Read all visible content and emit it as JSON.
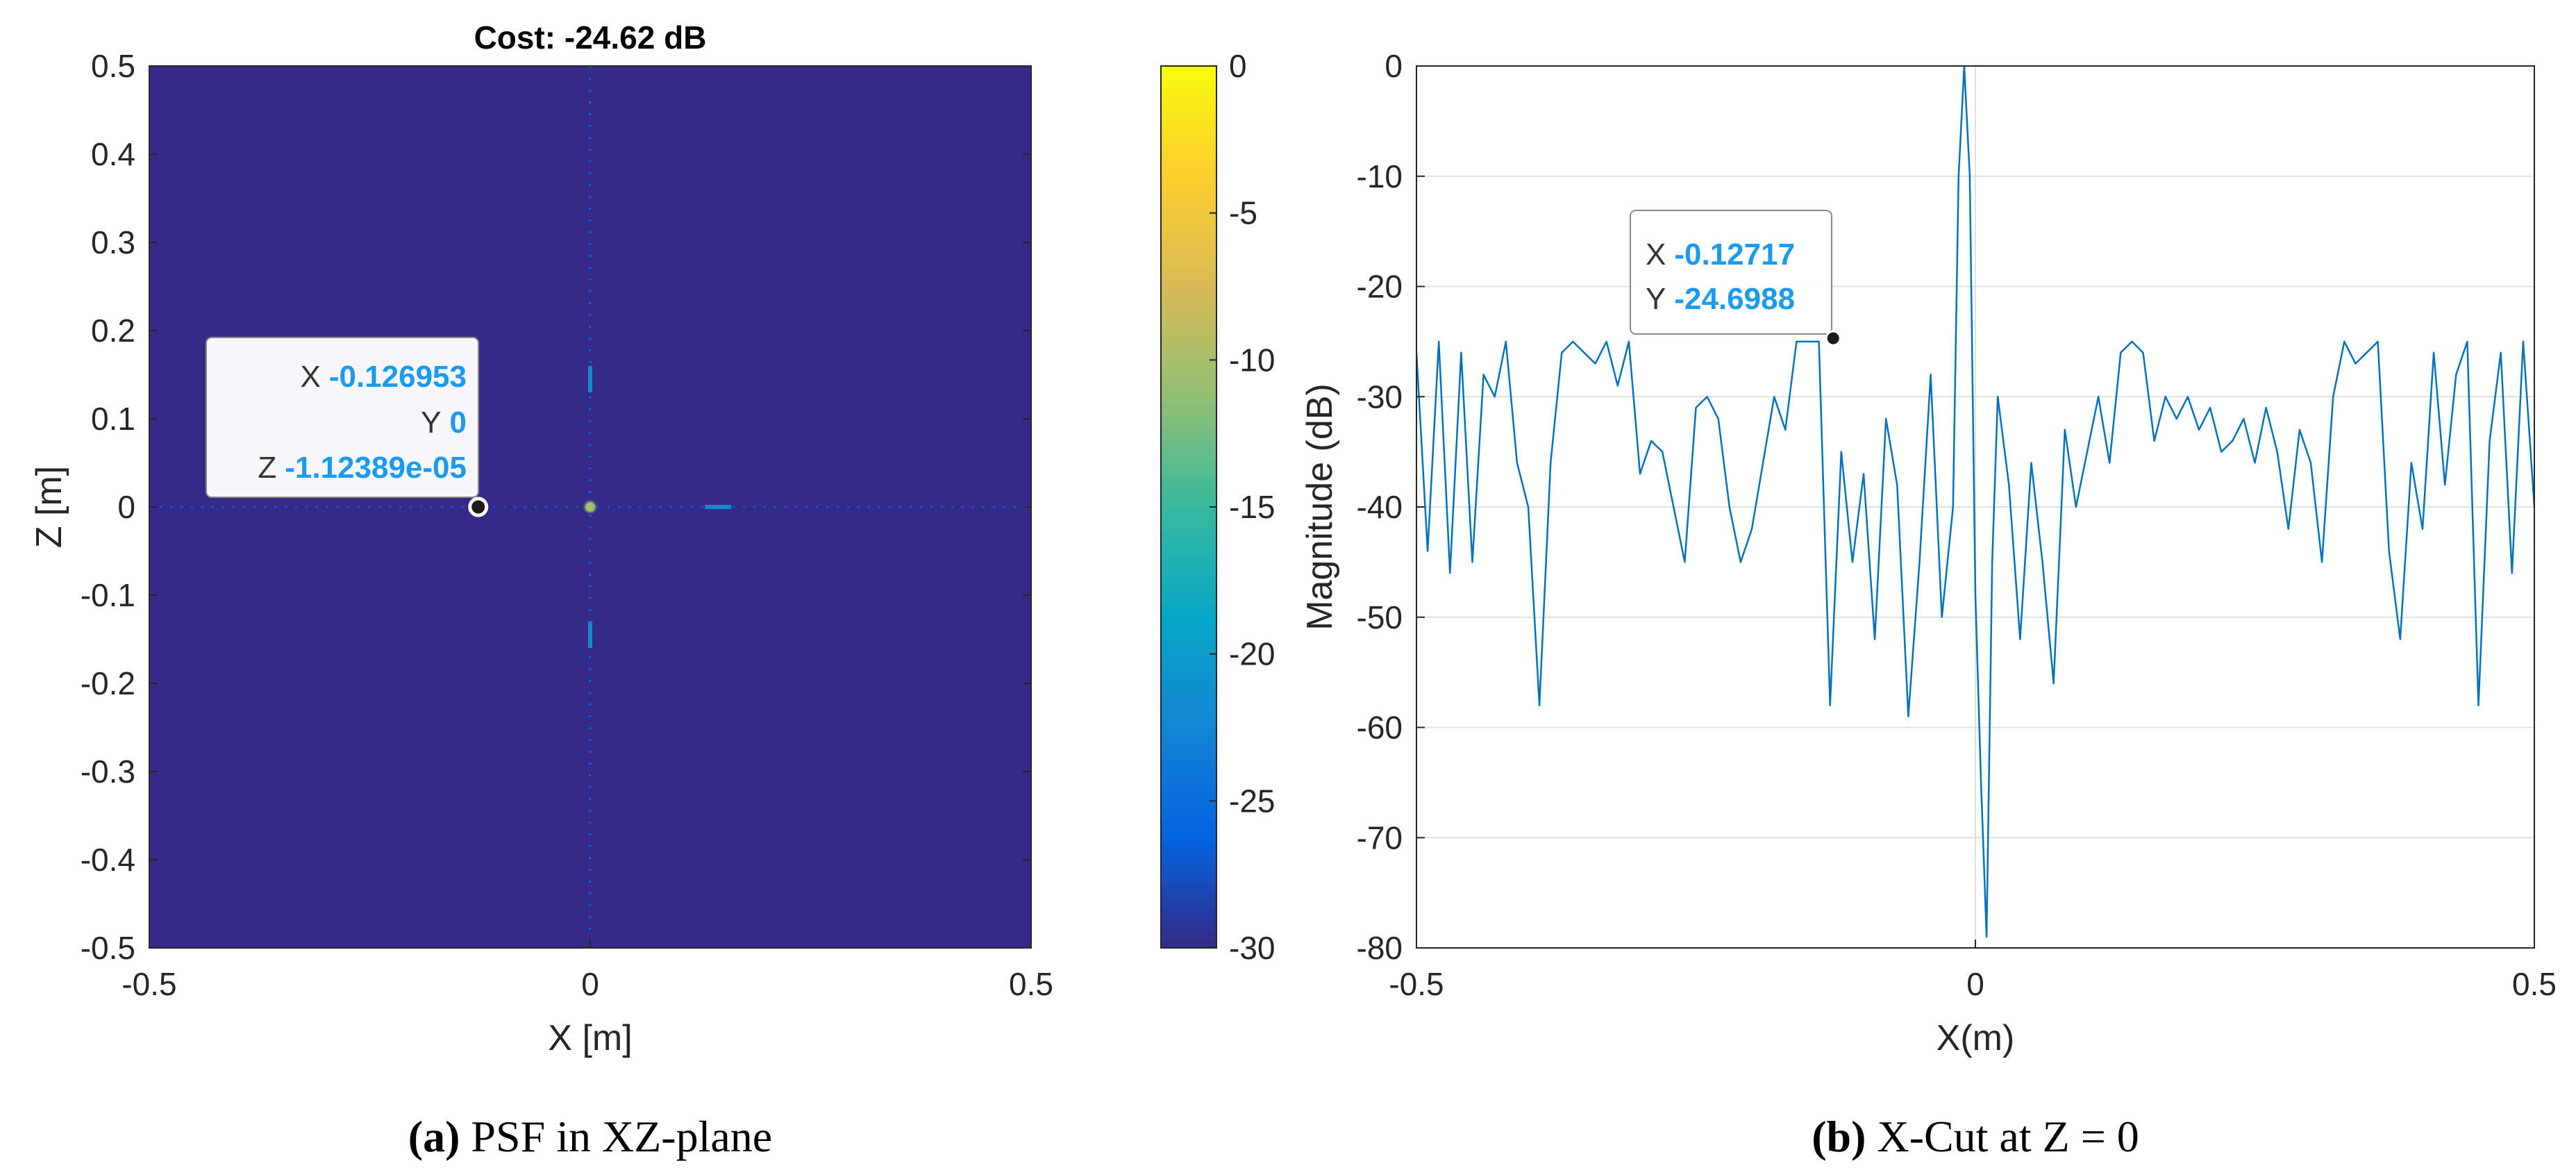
{
  "chart_data": [
    {
      "type": "heatmap",
      "title": "Cost: -24.62 dB",
      "xlabel": "X [m]",
      "ylabel": "Z [m]",
      "xlim": [
        -0.5,
        0.5
      ],
      "ylim": [
        -0.5,
        0.5
      ],
      "xticks": [
        "-0.5",
        "0",
        "0.5"
      ],
      "yticks": [
        "-0.5",
        "-0.4",
        "-0.3",
        "-0.2",
        "-0.1",
        "0",
        "0.1",
        "0.2",
        "0.3",
        "0.4",
        "0.5"
      ],
      "colorbar": {
        "range": [
          -30,
          0
        ],
        "ticks": [
          "0",
          "-5",
          "-10",
          "-15",
          "-20",
          "-25",
          "-30"
        ],
        "colormap": "parula"
      },
      "background_value_db": -30,
      "peak": {
        "x": 0,
        "z": 0,
        "value_db": -10
      },
      "features": [
        {
          "x": 0,
          "z_from": 0.5,
          "z_to": -0.5,
          "value_db": -26,
          "kind": "faint vertical line"
        },
        {
          "x_from": -0.5,
          "x_to": 0.5,
          "z": 0,
          "value_db": -27,
          "kind": "faint horizontal line"
        },
        {
          "x": 0,
          "z_from": 0.13,
          "z_to": 0.16,
          "value_db": -22
        },
        {
          "x": 0,
          "z_from": -0.16,
          "z_to": -0.13,
          "value_db": -22
        },
        {
          "x_from": 0.13,
          "x_to": 0.16,
          "z": 0,
          "value_db": -22
        }
      ],
      "datatip": {
        "x": "-0.126953",
        "y": "0",
        "z": "-1.12389e-05",
        "x_value": -0.126953,
        "z_value": 0
      },
      "datatip_labels": {
        "x": "X",
        "y": "Y",
        "z": "Z"
      },
      "caption_tag": "(a)",
      "caption_text": "PSF in XZ-plane"
    },
    {
      "type": "line",
      "title": "",
      "xlabel": "X(m)",
      "ylabel": "Magnitude (dB)",
      "xlim": [
        -0.5,
        0.5
      ],
      "ylim": [
        -80,
        0
      ],
      "xticks": [
        "-0.5",
        "0",
        "0.5"
      ],
      "yticks": [
        "0",
        "-10",
        "-20",
        "-30",
        "-40",
        "-50",
        "-60",
        "-70",
        "-80"
      ],
      "grid": true,
      "series": [
        {
          "color": "#0072bd",
          "x": [
            -0.5,
            -0.49,
            -0.48,
            -0.47,
            -0.46,
            -0.45,
            -0.44,
            -0.43,
            -0.42,
            -0.41,
            -0.4,
            -0.39,
            -0.38,
            -0.37,
            -0.36,
            -0.35,
            -0.34,
            -0.33,
            -0.32,
            -0.31,
            -0.3,
            -0.29,
            -0.28,
            -0.27,
            -0.26,
            -0.25,
            -0.24,
            -0.23,
            -0.22,
            -0.21,
            -0.2,
            -0.19,
            -0.18,
            -0.17,
            -0.16,
            -0.15,
            -0.14,
            -0.13,
            -0.12,
            -0.11,
            -0.1,
            -0.09,
            -0.08,
            -0.07,
            -0.06,
            -0.05,
            -0.04,
            -0.03,
            -0.02,
            -0.015,
            -0.01,
            -0.005,
            0,
            0.005,
            0.01,
            0.015,
            0.02,
            0.03,
            0.04,
            0.05,
            0.06,
            0.07,
            0.08,
            0.09,
            0.1,
            0.11,
            0.12,
            0.13,
            0.14,
            0.15,
            0.16,
            0.17,
            0.18,
            0.19,
            0.2,
            0.21,
            0.22,
            0.23,
            0.24,
            0.25,
            0.26,
            0.27,
            0.28,
            0.29,
            0.3,
            0.31,
            0.32,
            0.33,
            0.34,
            0.35,
            0.36,
            0.37,
            0.38,
            0.39,
            0.4,
            0.41,
            0.42,
            0.43,
            0.44,
            0.45,
            0.46,
            0.47,
            0.48,
            0.49,
            0.5
          ],
          "y": [
            -26,
            -44,
            -25,
            -46,
            -26,
            -45,
            -28,
            -30,
            -25,
            -36,
            -40,
            -58,
            -36,
            -26,
            -25,
            -26,
            -27,
            -25,
            -29,
            -25,
            -37,
            -34,
            -35,
            -40,
            -45,
            -31,
            -30,
            -32,
            -40,
            -45,
            -42,
            -36,
            -30,
            -33,
            -25,
            -25,
            -25,
            -58,
            -35,
            -45,
            -37,
            -52,
            -32,
            -38,
            -59,
            -45,
            -28,
            -50,
            -40,
            -10,
            0,
            -10,
            -48,
            -65,
            -79,
            -45,
            -30,
            -38,
            -52,
            -36,
            -45,
            -56,
            -33,
            -40,
            -35,
            -30,
            -36,
            -26,
            -25,
            -26,
            -34,
            -30,
            -32,
            -30,
            -33,
            -31,
            -35,
            -34,
            -32,
            -36,
            -31,
            -35,
            -42,
            -33,
            -36,
            -45,
            -30,
            -25,
            -27,
            -26,
            -25,
            -44,
            -52,
            -36,
            -42,
            -26,
            -38,
            -28,
            -25,
            -58,
            -34,
            -26,
            -46,
            -25,
            -40
          ]
        }
      ],
      "datatip": {
        "x": "-0.12717",
        "y": "-24.6988",
        "x_value": -0.12717,
        "y_value": -24.6988
      },
      "datatip_labels": {
        "x": "X",
        "y": "Y"
      },
      "caption_tag": "(b)",
      "caption_text": "X-Cut at Z = 0"
    }
  ]
}
